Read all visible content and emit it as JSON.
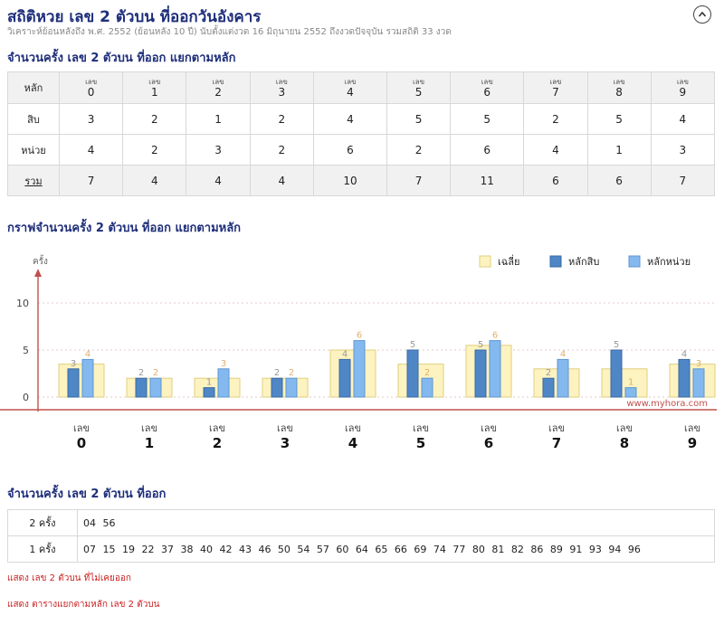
{
  "header": {
    "title": "สถิติหวย เลข 2 ตัวบน ที่ออกวันอังคาร",
    "subtitle": "วิเคราะห์ย้อนหลังถึง พ.ศ. 2552 (ย้อนหลัง 10 ปี) นับตั้งแต่งวด 16 มิถุนายน 2552 ถึงงวดปัจจุบัน รวมสถิติ 33 งวด"
  },
  "table_section": {
    "title": "จำนวนครั้ง เลข 2 ตัวบน ที่ออก แยกตามหลัก",
    "corner": "หลัก",
    "digit_prefix": "เลข",
    "digits": [
      "0",
      "1",
      "2",
      "3",
      "4",
      "5",
      "6",
      "7",
      "8",
      "9"
    ],
    "rows": [
      {
        "label": "สิบ",
        "values": [
          "3",
          "2",
          "1",
          "2",
          "4",
          "5",
          "5",
          "2",
          "5",
          "4"
        ]
      },
      {
        "label": "หน่วย",
        "values": [
          "4",
          "2",
          "3",
          "2",
          "6",
          "2",
          "6",
          "4",
          "1",
          "3"
        ]
      },
      {
        "label": "รวม",
        "values": [
          "7",
          "4",
          "4",
          "4",
          "10",
          "7",
          "11",
          "6",
          "6",
          "7"
        ]
      }
    ]
  },
  "chart_section": {
    "title": "กราฟจำนวนครั้ง 2 ตัวบน ที่ออก แยกตามหลัก"
  },
  "chart_data": {
    "type": "bar",
    "ylabel": "ครั้ง",
    "ylim": [
      0,
      12
    ],
    "yticks": [
      0,
      5,
      10
    ],
    "categories": [
      "0",
      "1",
      "2",
      "3",
      "4",
      "5",
      "6",
      "7",
      "8",
      "9"
    ],
    "category_prefix": "เลข",
    "series": [
      {
        "name": "เฉลี่ย",
        "values": [
          3.5,
          2,
          2,
          2,
          5,
          3.5,
          5.5,
          3,
          3,
          3.5
        ],
        "color": "#fdf3c0",
        "stroke": "#e0cf7e"
      },
      {
        "name": "หลักสิบ",
        "values": [
          3,
          2,
          1,
          2,
          4,
          5,
          5,
          2,
          5,
          4
        ],
        "color": "#4f86c6",
        "stroke": "#3a6aa4"
      },
      {
        "name": "หลักหน่วย",
        "values": [
          4,
          2,
          3,
          2,
          6,
          2,
          6,
          4,
          1,
          3
        ],
        "color": "#84b9f0",
        "stroke": "#5f95d0"
      }
    ],
    "legend_position": "top-right",
    "watermark": "www.myhora.com",
    "axis_color": "#c0504d"
  },
  "freq_section": {
    "title": "จำนวนครั้ง เลข 2 ตัวบน ที่ออก",
    "rows": [
      {
        "label": "2 ครั้ง",
        "numbers": "04 56"
      },
      {
        "label": "1 ครั้ง",
        "numbers": "07 15 19 22 37 38 40 42 43 46 50 54 57 60 64 65 66 69 74 77 80 81 82 86 89 91 93 94 96"
      }
    ]
  },
  "links": {
    "not_drawn": "แสดง เลข 2 ตัวบน ที่ไม่เคยออก",
    "table_by_digit": "แสดง ตารางแยกตามหลัก เลข 2 ตัวบน"
  }
}
